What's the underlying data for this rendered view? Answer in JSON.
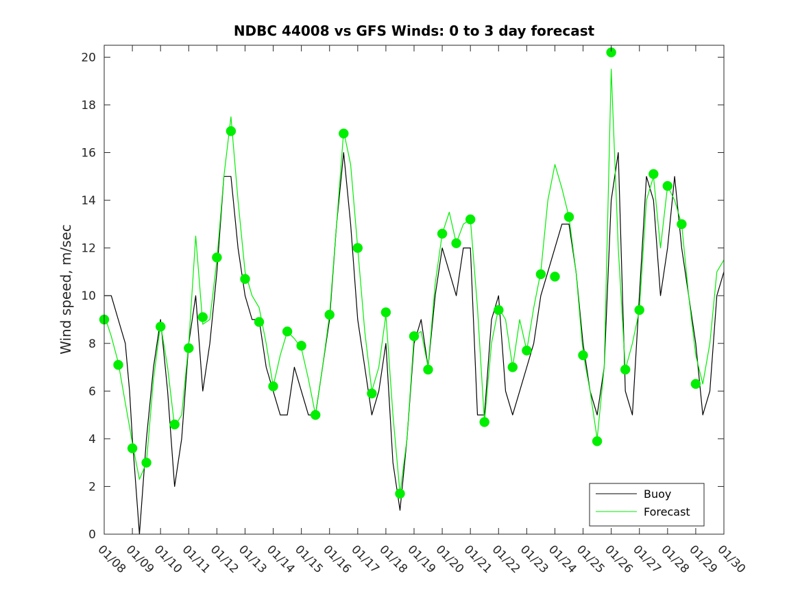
{
  "chart_data": {
    "type": "line",
    "title": "NDBC 44008 vs GFS Winds: 0 to 3 day forecast",
    "xlabel": "",
    "ylabel": "Wind speed, m/sec",
    "x_tick_labels": [
      "01/08",
      "01/09",
      "01/10",
      "01/11",
      "01/12",
      "01/13",
      "01/14",
      "01/15",
      "01/16",
      "01/17",
      "01/18",
      "01/19",
      "01/20",
      "01/21",
      "01/22",
      "01/23",
      "01/24",
      "01/25",
      "01/26",
      "01/27",
      "01/28",
      "01/29",
      "01/30"
    ],
    "xlim_days": [
      8,
      30
    ],
    "ylim": [
      0,
      20.5
    ],
    "y_ticks": [
      0,
      2,
      4,
      6,
      8,
      10,
      12,
      14,
      16,
      18,
      20
    ],
    "grid": false,
    "legend": {
      "position": "bottom-right",
      "entries": [
        "Buoy",
        "Forecast"
      ]
    },
    "colors": {
      "buoy": "#000000",
      "forecast": "#00ee00",
      "marker": "#00ee00"
    },
    "series": [
      {
        "name": "Buoy",
        "x": [
          8.0,
          8.25,
          8.5,
          8.75,
          8.9,
          9.0,
          9.25,
          9.5,
          9.75,
          10.0,
          10.25,
          10.5,
          10.75,
          11.0,
          11.25,
          11.5,
          11.75,
          12.0,
          12.25,
          12.5,
          12.75,
          13.0,
          13.25,
          13.5,
          13.75,
          14.0,
          14.25,
          14.5,
          14.75,
          15.0,
          15.25,
          15.5,
          15.75,
          16.0,
          16.25,
          16.5,
          16.75,
          17.0,
          17.25,
          17.5,
          17.75,
          18.0,
          18.25,
          18.5,
          18.75,
          19.0,
          19.25,
          19.5,
          19.75,
          20.0,
          20.25,
          20.5,
          20.75,
          21.0,
          21.25,
          21.5,
          21.75,
          22.0,
          22.25,
          22.5,
          22.75,
          23.0,
          23.25,
          23.5,
          23.75,
          24.0,
          24.25,
          24.5,
          24.75,
          25.0,
          25.25,
          25.5,
          25.75,
          26.0,
          26.25,
          26.5,
          26.75,
          27.0,
          27.25,
          27.5,
          27.75,
          28.0,
          28.25,
          28.5,
          28.75,
          29.0,
          29.25,
          29.5,
          29.75,
          30.0
        ],
        "y": [
          10,
          10,
          9,
          8,
          6,
          4,
          0,
          4,
          7,
          9,
          6,
          2,
          4,
          8,
          10,
          6,
          8,
          11,
          15,
          15,
          12,
          10,
          9,
          9,
          7,
          6,
          5,
          5,
          7,
          6,
          5,
          5,
          7,
          9,
          13,
          16,
          13,
          9,
          7,
          5,
          6,
          8,
          3,
          1,
          4,
          8,
          9,
          7,
          10,
          12,
          11,
          10,
          12,
          12,
          5,
          5,
          9,
          10,
          6,
          5,
          6,
          7,
          8,
          10,
          11,
          12,
          13,
          13,
          11,
          8,
          6,
          5,
          7,
          14,
          16,
          6,
          5,
          10,
          15,
          14,
          10,
          12,
          15,
          12,
          10,
          8,
          5,
          6,
          10,
          11
        ]
      },
      {
        "name": "Forecast",
        "x": [
          8.0,
          8.25,
          8.5,
          8.75,
          8.9,
          9.0,
          9.25,
          9.5,
          9.75,
          10.0,
          10.25,
          10.5,
          10.75,
          11.0,
          11.25,
          11.5,
          11.75,
          12.0,
          12.25,
          12.5,
          12.75,
          13.0,
          13.25,
          13.5,
          13.75,
          14.0,
          14.25,
          14.5,
          14.75,
          15.0,
          15.25,
          15.5,
          15.75,
          16.0,
          16.25,
          16.5,
          16.75,
          17.0,
          17.25,
          17.5,
          17.75,
          18.0,
          18.25,
          18.5,
          18.75,
          19.0,
          19.25,
          19.5,
          19.75,
          20.0,
          20.25,
          20.5,
          20.75,
          21.0,
          21.25,
          21.5,
          21.75,
          22.0,
          22.25,
          22.5,
          22.75,
          23.0,
          23.25,
          23.5,
          23.75,
          24.0,
          24.25,
          24.5,
          24.75,
          25.0,
          25.25,
          25.5,
          25.75,
          26.0,
          26.25,
          26.5,
          26.75,
          27.0,
          27.25,
          27.5,
          27.75,
          28.0,
          28.25,
          28.5,
          28.75,
          29.0,
          29.25,
          29.5,
          29.75,
          30.0
        ],
        "y": [
          9.2,
          8.3,
          7.2,
          5.5,
          4.5,
          3.8,
          2.3,
          3.0,
          6.5,
          8.8,
          7.0,
          4.5,
          5.0,
          8.0,
          12.5,
          8.8,
          9.0,
          11.5,
          15.0,
          17.5,
          14.0,
          11.0,
          10.0,
          9.5,
          8.0,
          6.2,
          7.5,
          8.5,
          8.2,
          7.8,
          6.5,
          5.0,
          7.0,
          9.2,
          13.0,
          16.9,
          15.5,
          12.0,
          8.5,
          6.0,
          7.0,
          9.2,
          5.0,
          1.7,
          4.0,
          8.3,
          8.5,
          7.0,
          10.5,
          12.6,
          13.5,
          12.2,
          13.0,
          13.2,
          9.5,
          4.7,
          8.0,
          9.5,
          9.0,
          7.0,
          9.0,
          7.7,
          9.5,
          11.0,
          14.0,
          15.5,
          14.5,
          13.3,
          11.0,
          7.6,
          6.0,
          4.0,
          7.0,
          19.5,
          12.0,
          6.9,
          8.0,
          9.4,
          14.0,
          15.0,
          12.0,
          14.6,
          14.0,
          13.0,
          10.0,
          7.5,
          6.3,
          8.0,
          11.0,
          11.5
        ]
      }
    ],
    "markers": {
      "name": "Forecast",
      "x": [
        8.0,
        8.5,
        9.0,
        9.5,
        10.0,
        10.5,
        11.0,
        11.5,
        12.0,
        12.5,
        13.0,
        13.5,
        14.0,
        14.5,
        15.0,
        15.5,
        16.0,
        16.5,
        17.0,
        17.5,
        18.0,
        18.5,
        19.0,
        19.5,
        20.0,
        20.5,
        21.0,
        21.5,
        22.0,
        22.5,
        23.0,
        23.5,
        24.0,
        24.5,
        25.0,
        25.5,
        26.0,
        26.5,
        27.0,
        27.5,
        28.0,
        28.5,
        29.0
      ],
      "y": [
        9.0,
        7.1,
        3.6,
        3.0,
        8.7,
        4.6,
        7.8,
        9.1,
        11.6,
        16.9,
        10.7,
        8.9,
        6.2,
        8.5,
        7.9,
        5.0,
        9.2,
        16.8,
        12.0,
        5.9,
        9.3,
        1.7,
        8.3,
        6.9,
        12.6,
        12.2,
        13.2,
        4.7,
        9.4,
        7.0,
        7.7,
        10.9,
        10.8,
        13.3,
        7.5,
        3.9,
        20.2,
        6.9,
        9.4,
        15.1,
        14.6,
        13.0,
        6.3
      ]
    }
  }
}
